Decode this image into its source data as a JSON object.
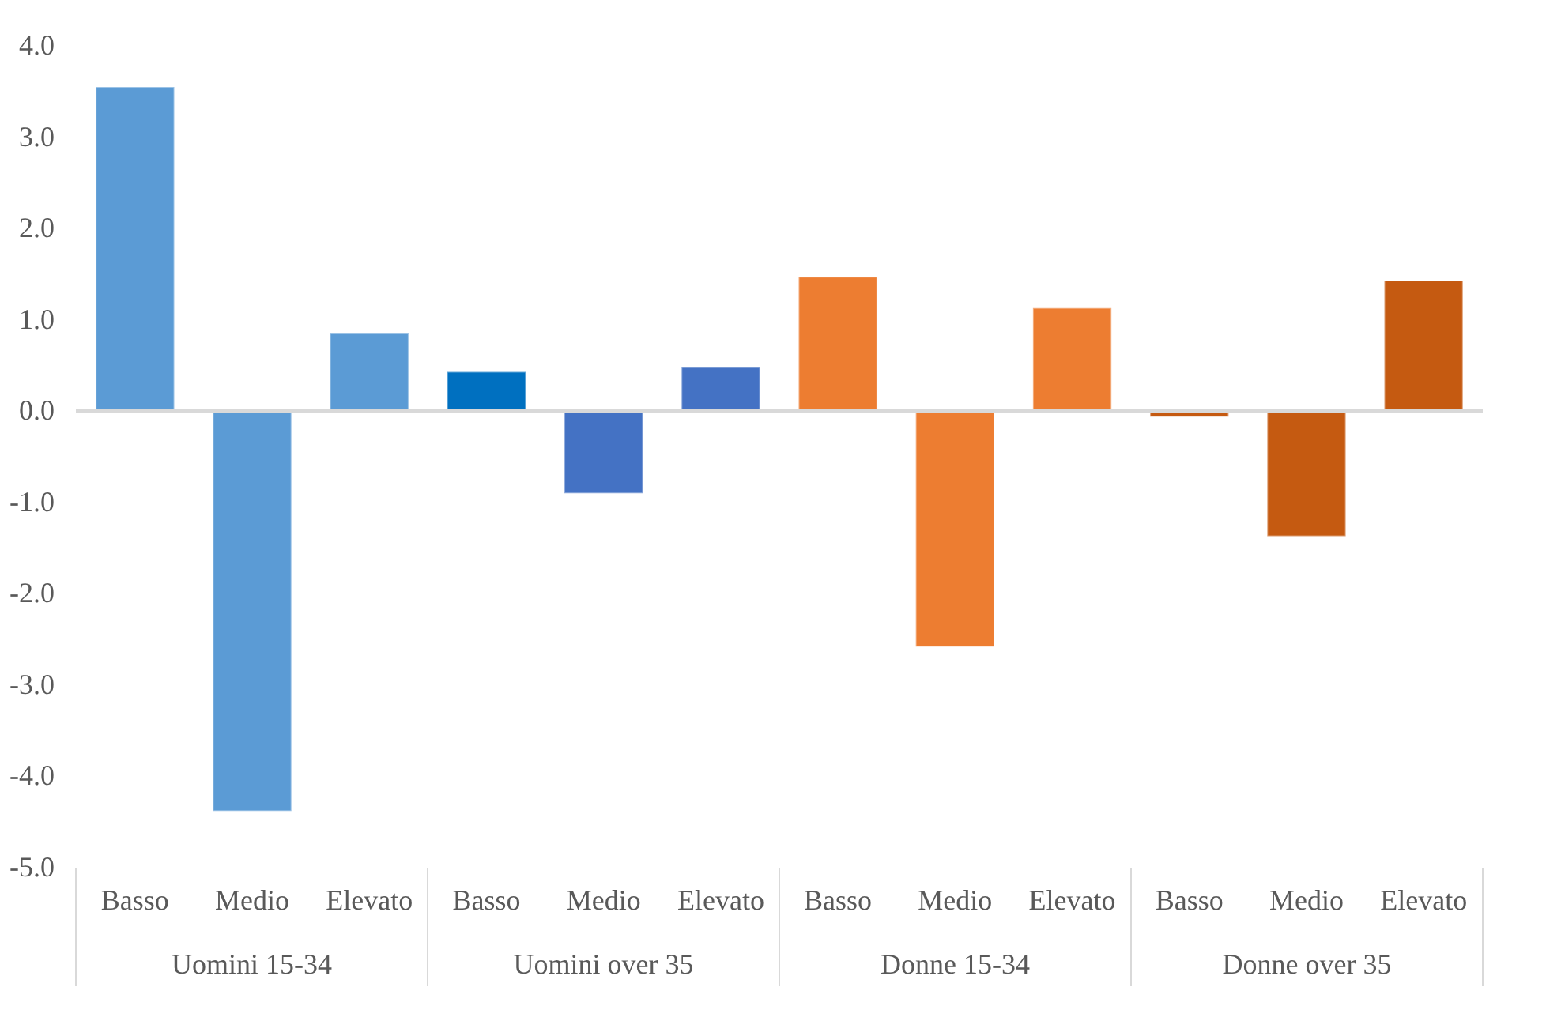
{
  "chart_data": {
    "type": "bar",
    "categories": [
      "Basso",
      "Medio",
      "Elevato",
      "Basso",
      "Medio",
      "Elevato",
      "Basso",
      "Medio",
      "Elevato",
      "Basso",
      "Medio",
      "Elevato"
    ],
    "values": [
      3.55,
      -4.38,
      0.85,
      0.43,
      -0.9,
      0.48,
      1.47,
      -2.58,
      1.13,
      -0.06,
      -1.37,
      1.43
    ],
    "colors": [
      "#5b9bd5",
      "#5b9bd5",
      "#5b9bd5",
      "#0070c0",
      "#4472c4",
      "#4472c4",
      "#ed7d31",
      "#ed7d31",
      "#ed7d31",
      "#c55a11",
      "#c55a11",
      "#c55a11"
    ],
    "annotations": [
      "Uomini 15-34",
      "Uomini over 35",
      "Donne 15-34",
      "Donne over 35"
    ],
    "ylim": [
      -5.0,
      4.0
    ],
    "yticks": [
      {
        "value": -5,
        "label": "-5.0"
      },
      {
        "value": -4,
        "label": "-4.0"
      },
      {
        "value": -3,
        "label": "-3.0"
      },
      {
        "value": -2,
        "label": "-2.0"
      },
      {
        "value": -1,
        "label": "-1.0"
      },
      {
        "value": 0,
        "label": "0.0"
      },
      {
        "value": 1,
        "label": "1.0"
      },
      {
        "value": 2,
        "label": "2.0"
      },
      {
        "value": 3,
        "label": "3.0"
      },
      {
        "value": 4,
        "label": "4.0"
      }
    ],
    "ref_lines": [
      {
        "axis": "y",
        "value": 0,
        "color": "#d9d9d9"
      }
    ],
    "grid": false,
    "legend": false
  }
}
